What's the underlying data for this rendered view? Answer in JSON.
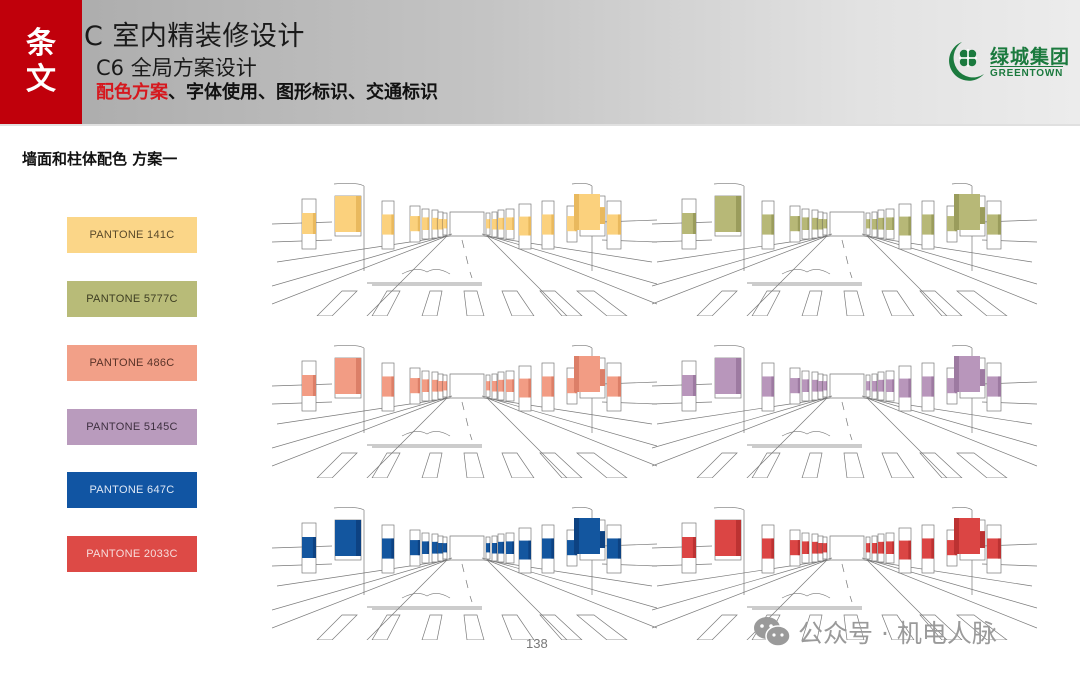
{
  "header": {
    "tag_chars": [
      "条",
      "文"
    ],
    "title": "C 室内精装修设计",
    "subtitle": "C6 全局方案设计",
    "topics_highlight": "配色方案",
    "topics_rest": "、字体使用、图形标识、交通标识",
    "logo": {
      "name_cn": "绿城集团",
      "name_en": "GREENTOWN",
      "color": "#1b7a3e"
    }
  },
  "section": {
    "title": "墙面和柱体配色 方案一"
  },
  "swatches": [
    {
      "label": "PANTONE 141C",
      "color": "#fbd688",
      "text_color": "#5a4a2a"
    },
    {
      "label": "PANTONE 5777C",
      "color": "#b8bb78",
      "text_color": "#3d3d22"
    },
    {
      "label": "PANTONE 486C",
      "color": "#f2a088",
      "text_color": "#5a3328"
    },
    {
      "label": "PANTONE 5145C",
      "color": "#b99bbd",
      "text_color": "#3e3040"
    },
    {
      "label": "PANTONE 647C",
      "color": "#1155a3",
      "text_color": "#dfe8f5"
    },
    {
      "label": "PANTONE 2033C",
      "color": "#dd4a46",
      "text_color": "#f7dcdb"
    }
  ],
  "renderings": [
    {
      "name": "yellow-scheme",
      "color": "#fbd17d",
      "shade": "#e9b95e"
    },
    {
      "name": "green-scheme",
      "color": "#b7b877",
      "shade": "#9a9c5c"
    },
    {
      "name": "salmon-scheme",
      "color": "#f29c84",
      "shade": "#dc7f68"
    },
    {
      "name": "purple-scheme",
      "color": "#b896bb",
      "shade": "#9d7aa1"
    },
    {
      "name": "blue-scheme",
      "color": "#13569f",
      "shade": "#0d4282"
    },
    {
      "name": "red-scheme",
      "color": "#db4544",
      "shade": "#bc3232"
    }
  ],
  "footer": {
    "page_number": "138",
    "watermark": "公众号 · 机电人脉"
  }
}
